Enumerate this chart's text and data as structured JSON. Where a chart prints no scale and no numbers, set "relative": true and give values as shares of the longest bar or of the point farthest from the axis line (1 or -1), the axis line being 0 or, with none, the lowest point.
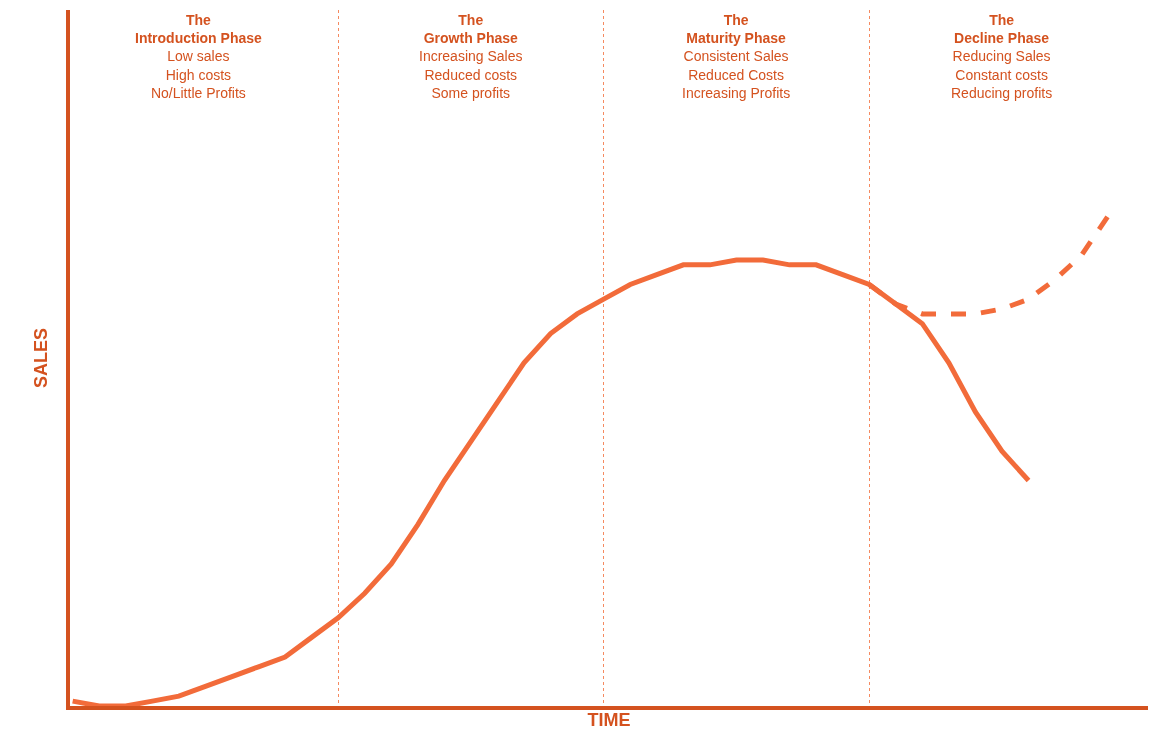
{
  "chart_data": {
    "type": "line",
    "relative": true,
    "xlabel": "TIME",
    "ylabel": "SALES",
    "grid": "x",
    "marker": "none",
    "tick_labels": false,
    "categories": [
      null,
      null,
      null,
      null,
      null,
      null,
      null,
      null,
      null,
      null,
      null,
      null,
      null,
      null,
      null,
      null,
      null,
      null,
      null,
      null,
      null,
      null,
      null,
      null,
      null,
      null,
      null,
      null,
      null,
      null,
      null,
      null,
      null,
      null,
      null,
      null,
      null,
      null,
      null,
      null,
      null
    ],
    "series": [
      {
        "color": "#f26b3a",
        "line_style": "solid",
        "values": [
          0.01,
          0,
          0,
          0.01,
          0.02,
          0.04,
          0.06,
          0.08,
          0.1,
          0.14,
          0.18,
          0.23,
          0.29,
          0.37,
          0.46,
          0.54,
          0.62,
          0.7,
          0.76,
          0.8,
          0.83,
          0.86,
          0.88,
          0.9,
          0.9,
          0.91,
          0.91,
          0.9,
          0.9,
          0.88,
          0.86,
          0.82,
          0.78,
          0.7,
          0.6,
          0.52,
          0.46,
          null,
          null,
          null,
          null
        ]
      },
      {
        "color": "#f26b3a",
        "line_style": "dashed",
        "values": [
          null,
          null,
          null,
          null,
          null,
          null,
          null,
          null,
          null,
          null,
          null,
          null,
          null,
          null,
          null,
          null,
          null,
          null,
          null,
          null,
          null,
          null,
          null,
          null,
          null,
          null,
          null,
          null,
          null,
          null,
          0.86,
          0.82,
          0.8,
          0.8,
          0.8,
          0.81,
          0.83,
          0.87,
          0.92,
          1.0,
          null
        ]
      }
    ],
    "annotations": [
      "The\nIntroduction Phase\nLow sales\nHigh costs\nNo/Little Profits",
      "The\nGrowth Phase\nIncreasing Sales\nReduced costs\nSome profits",
      "The\nMaturity Phase\nConsistent Sales\nReduced Costs\nIncreasing Profits",
      "The\nDecline Phase\nReducing Sales\nConstant costs\nReducing profits"
    ]
  }
}
